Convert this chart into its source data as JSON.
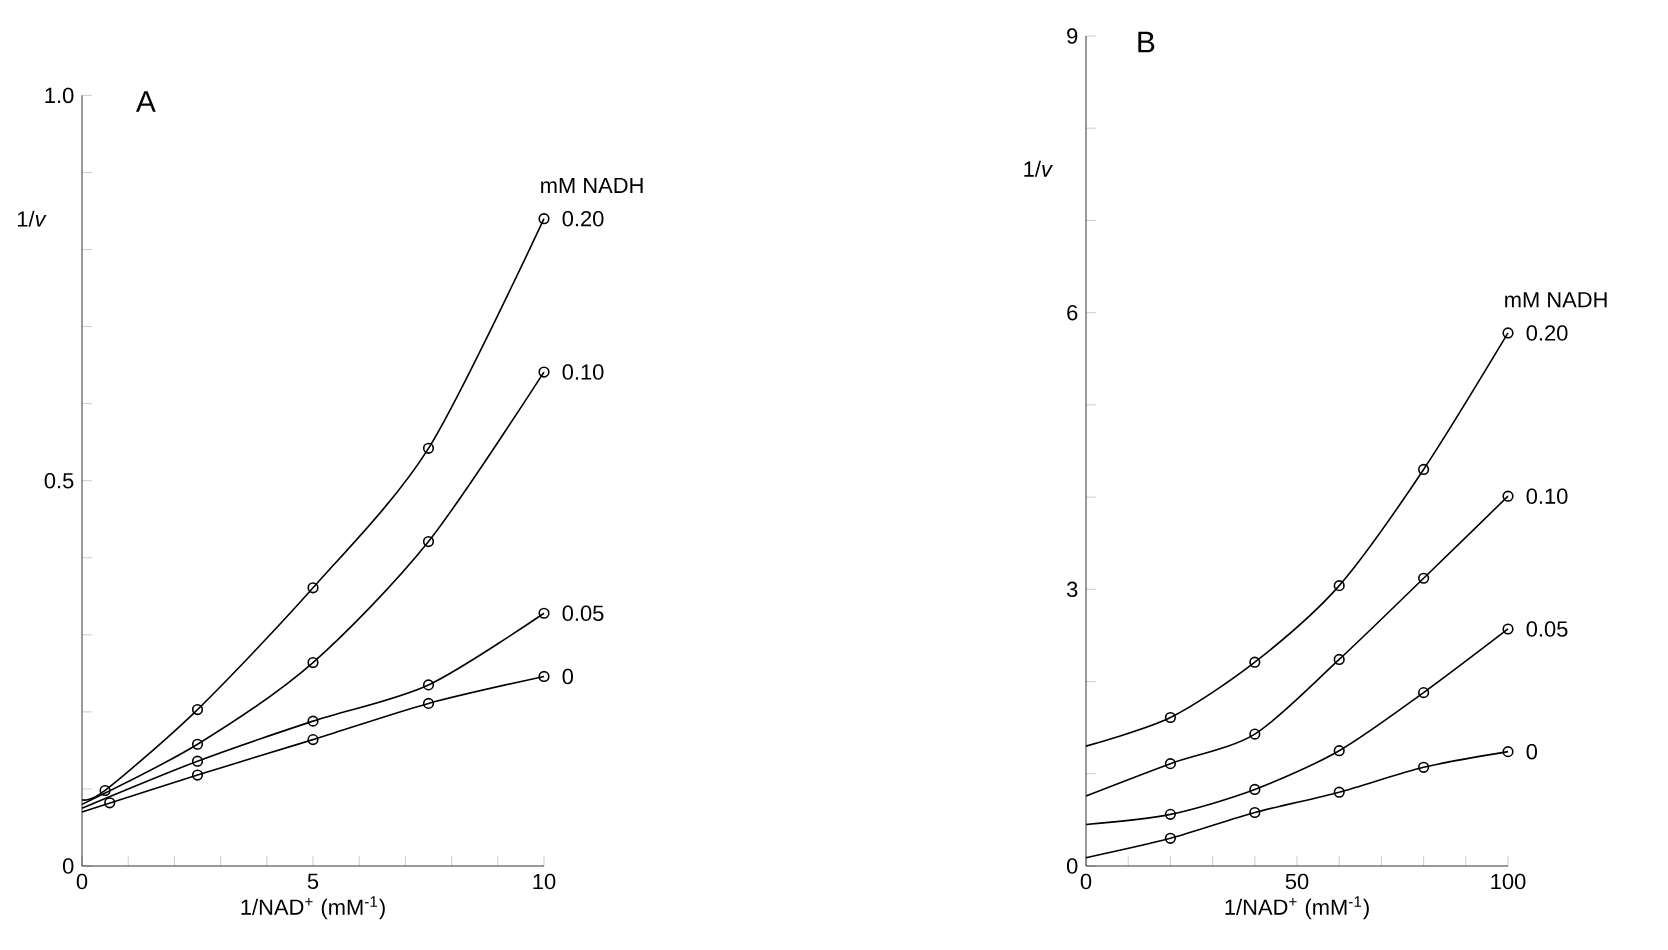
{
  "chart_data": [
    {
      "type": "line",
      "title": "A",
      "xlabel": "1/NAD$^{+}$ (mM$^{-1}$)",
      "ylabel": "1/*v*",
      "legend_title": "mM NADH",
      "grid": false,
      "xlim": [
        0,
        10
      ],
      "ylim": [
        0,
        1.0
      ],
      "xticks": [
        0,
        {
          "value": 1,
          "label": null
        },
        {
          "value": 2,
          "label": null
        },
        {
          "value": 3,
          "label": null
        },
        {
          "value": 4,
          "label": null
        },
        5,
        {
          "value": 6,
          "label": null
        },
        {
          "value": 7,
          "label": null
        },
        {
          "value": 8,
          "label": null
        },
        {
          "value": 9,
          "label": null
        },
        10
      ],
      "yticks": [
        0,
        {
          "value": 0.1,
          "label": null
        },
        {
          "value": 0.2,
          "label": null
        },
        {
          "value": 0.3,
          "label": null
        },
        {
          "value": 0.4,
          "label": null
        },
        0.5,
        {
          "value": 0.6,
          "label": null
        },
        {
          "value": 0.7,
          "label": null
        },
        {
          "value": 0.8,
          "label": null
        },
        {
          "value": 0.9,
          "label": null
        },
        {
          "value": 1.0,
          "label": "1.0"
        }
      ],
      "series": [
        {
          "type": "scatter",
          "name": "0.20",
          "color": "#000000",
          "marker": "circle",
          "x": [
            0.5,
            2.5,
            5,
            7.5,
            10
          ],
          "values": [
            0.098,
            0.203,
            0.361,
            0.542,
            0.84
          ]
        },
        {
          "type": "scatter",
          "name": "0.10",
          "color": "#000000",
          "marker": "circle",
          "x": [
            2.5,
            5,
            7.5,
            10
          ],
          "values": [
            0.158,
            0.264,
            0.421,
            0.641
          ]
        },
        {
          "type": "scatter",
          "name": "0.05",
          "color": "#000000",
          "marker": "circle",
          "x": [
            2.5,
            5,
            7.5,
            10
          ],
          "values": [
            0.136,
            0.188,
            0.235,
            0.328
          ]
        },
        {
          "type": "scatter",
          "name": "0",
          "color": "#000000",
          "marker": "circle",
          "x": [
            0.6,
            2.5,
            5,
            7.5,
            10
          ],
          "values": [
            0.082,
            0.118,
            0.164,
            0.211,
            0.246
          ]
        },
        {
          "color": "#000000",
          "marker": "none",
          "line_style": "solid",
          "x": [
            0,
            0.5,
            2.5,
            5,
            7.5,
            10
          ],
          "values": [
            0.086,
            0.098,
            0.203,
            0.361,
            0.542,
            0.84
          ]
        },
        {
          "color": "#000000",
          "marker": "none",
          "line_style": "solid",
          "x": [
            0,
            2.5,
            5,
            7.5,
            10
          ],
          "values": [
            0.08,
            0.158,
            0.264,
            0.421,
            0.641
          ]
        },
        {
          "color": "#000000",
          "marker": "none",
          "line_style": "solid",
          "x": [
            0,
            2.5,
            5,
            7.5,
            10
          ],
          "values": [
            0.075,
            0.136,
            0.188,
            0.235,
            0.328
          ]
        },
        {
          "color": "#000000",
          "marker": "none",
          "line_style": "solid",
          "x": [
            0,
            2.5,
            5,
            7.5,
            10
          ],
          "values": [
            0.07,
            0.118,
            0.164,
            0.211,
            0.246
          ]
        }
      ]
    },
    {
      "type": "line",
      "title": "B",
      "xlabel": "1/NAD$^{+}$ (mM$^{-1}$)",
      "ylabel": "1/*v*",
      "legend_title": "mM NADH",
      "grid": false,
      "xlim": [
        0,
        100
      ],
      "ylim": [
        0,
        9
      ],
      "xticks": [
        0,
        {
          "value": 10,
          "label": null
        },
        {
          "value": 20,
          "label": null
        },
        {
          "value": 30,
          "label": null
        },
        {
          "value": 40,
          "label": null
        },
        50,
        {
          "value": 60,
          "label": null
        },
        {
          "value": 70,
          "label": null
        },
        {
          "value": 80,
          "label": null
        },
        {
          "value": 90,
          "label": null
        },
        100
      ],
      "yticks": [
        0,
        {
          "value": 1,
          "label": null
        },
        {
          "value": 2,
          "label": null
        },
        3,
        {
          "value": 4,
          "label": null
        },
        {
          "value": 5,
          "label": null
        },
        6,
        {
          "value": 7,
          "label": null
        },
        {
          "value": 8,
          "label": null
        },
        9
      ],
      "series": [
        {
          "type": "scatter",
          "name": "0.20",
          "color": "#000000",
          "marker": "circle",
          "x": [
            20,
            40,
            60,
            80,
            100
          ],
          "values": [
            1.61,
            2.21,
            3.04,
            4.3,
            5.78
          ]
        },
        {
          "type": "scatter",
          "name": "0.10",
          "color": "#000000",
          "marker": "circle",
          "x": [
            20,
            40,
            60,
            80,
            100
          ],
          "values": [
            1.11,
            1.43,
            2.24,
            3.12,
            4.01
          ]
        },
        {
          "type": "scatter",
          "name": "0.05",
          "color": "#000000",
          "marker": "circle",
          "x": [
            20,
            40,
            60,
            80,
            100
          ],
          "values": [
            0.56,
            0.83,
            1.25,
            1.88,
            2.57
          ]
        },
        {
          "type": "scatter",
          "name": "0",
          "color": "#000000",
          "marker": "circle",
          "x": [
            20,
            40,
            60,
            80,
            100
          ],
          "values": [
            0.3,
            0.58,
            0.8,
            1.07,
            1.24
          ]
        },
        {
          "color": "#000000",
          "marker": "none",
          "line_style": "solid",
          "x": [
            0,
            20,
            40,
            60,
            80,
            100
          ],
          "values": [
            1.3,
            1.61,
            2.21,
            3.04,
            4.3,
            5.78
          ]
        },
        {
          "color": "#000000",
          "marker": "none",
          "line_style": "solid",
          "x": [
            0,
            20,
            40,
            60,
            80,
            100
          ],
          "values": [
            0.76,
            1.11,
            1.43,
            2.24,
            3.12,
            4.01
          ]
        },
        {
          "color": "#000000",
          "marker": "none",
          "line_style": "solid",
          "x": [
            0,
            20,
            40,
            60,
            80,
            100
          ],
          "values": [
            0.45,
            0.56,
            0.83,
            1.25,
            1.88,
            2.57
          ]
        },
        {
          "color": "#000000",
          "marker": "none",
          "line_style": "solid",
          "x": [
            0,
            20,
            40,
            60,
            80,
            100
          ],
          "values": [
            0.09,
            0.3,
            0.58,
            0.8,
            1.07,
            1.24
          ]
        }
      ]
    }
  ]
}
